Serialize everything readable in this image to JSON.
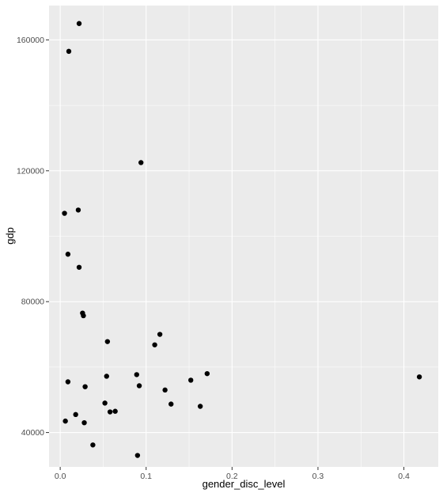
{
  "chart_data": {
    "type": "scatter",
    "title": "",
    "xlabel": "gender_disc_level",
    "ylabel": "gdp",
    "xlim": [
      -0.013,
      0.44
    ],
    "ylim": [
      29500,
      170500
    ],
    "x_ticks": [
      0.0,
      0.1,
      0.2,
      0.3,
      0.4
    ],
    "x_tick_labels": [
      "0.0",
      "0.1",
      "0.2",
      "0.3",
      "0.4"
    ],
    "y_ticks": [
      40000,
      80000,
      120000,
      160000
    ],
    "y_tick_labels": [
      "40000",
      "80000",
      "120000",
      "160000"
    ],
    "grid": true,
    "panel_color": "#ebebeb",
    "grid_color": "#ffffff",
    "point_color": "#000000",
    "points": [
      {
        "x": 0.022,
        "y": 165000
      },
      {
        "x": 0.01,
        "y": 156500
      },
      {
        "x": 0.094,
        "y": 122500
      },
      {
        "x": 0.005,
        "y": 107000
      },
      {
        "x": 0.021,
        "y": 108000
      },
      {
        "x": 0.009,
        "y": 94500
      },
      {
        "x": 0.022,
        "y": 90500
      },
      {
        "x": 0.026,
        "y": 76500
      },
      {
        "x": 0.027,
        "y": 75700
      },
      {
        "x": 0.116,
        "y": 70000
      },
      {
        "x": 0.055,
        "y": 67800
      },
      {
        "x": 0.11,
        "y": 66800
      },
      {
        "x": 0.171,
        "y": 58000
      },
      {
        "x": 0.089,
        "y": 57700
      },
      {
        "x": 0.054,
        "y": 57200
      },
      {
        "x": 0.152,
        "y": 56000
      },
      {
        "x": 0.009,
        "y": 55500
      },
      {
        "x": 0.092,
        "y": 54300
      },
      {
        "x": 0.029,
        "y": 54000
      },
      {
        "x": 0.122,
        "y": 53000
      },
      {
        "x": 0.052,
        "y": 49000
      },
      {
        "x": 0.129,
        "y": 48700
      },
      {
        "x": 0.163,
        "y": 48000
      },
      {
        "x": 0.064,
        "y": 46500
      },
      {
        "x": 0.058,
        "y": 46300
      },
      {
        "x": 0.018,
        "y": 45500
      },
      {
        "x": 0.006,
        "y": 43500
      },
      {
        "x": 0.028,
        "y": 43000
      },
      {
        "x": 0.038,
        "y": 36200
      },
      {
        "x": 0.09,
        "y": 33000
      },
      {
        "x": 0.418,
        "y": 57000
      }
    ]
  }
}
